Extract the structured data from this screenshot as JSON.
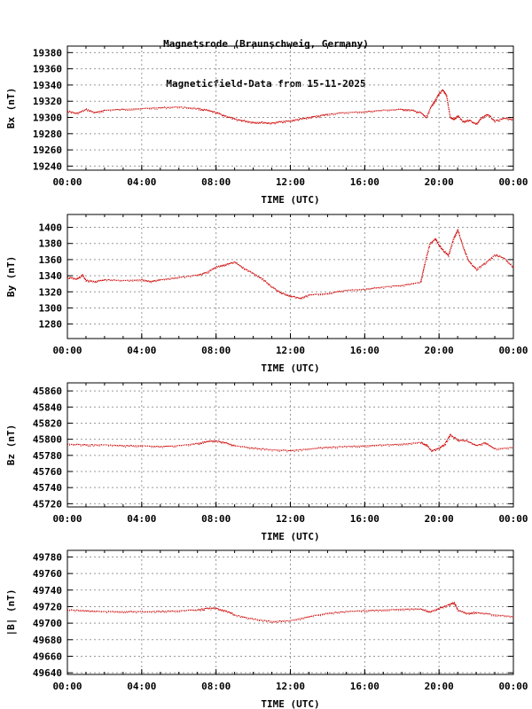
{
  "title_line1": "Magnetsrode (Braunschweig, Germany)",
  "title_line2": "Magneticfield-Data from 15-11-2025",
  "trace_color": "#cc0000",
  "grid_color": "#999999",
  "chart_data": [
    {
      "type": "line",
      "ylabel": "Bx (nT)",
      "xlabel": "TIME (UTC)",
      "xlim": [
        0,
        24
      ],
      "x_ticks": [
        "00:00",
        "04:00",
        "08:00",
        "12:00",
        "16:00",
        "20:00",
        "00:00"
      ],
      "ylim": [
        19235,
        19388
      ],
      "y_ticks": [
        19240,
        19260,
        19280,
        19300,
        19320,
        19340,
        19360,
        19380
      ],
      "grid": true,
      "series": [
        {
          "x": [
            0,
            0.5,
            1,
            1.5,
            2,
            3,
            4,
            5,
            6,
            7,
            7.5,
            8,
            8.5,
            9,
            9.5,
            10,
            10.5,
            11,
            11.5,
            12,
            12.5,
            13,
            13.5,
            14,
            15,
            16,
            17,
            18,
            18.5,
            19,
            19.3,
            19.6,
            19.8,
            20,
            20.2,
            20.4,
            20.6,
            20.8,
            21,
            21.3,
            21.6,
            22,
            22.3,
            22.6,
            23,
            23.5,
            24
          ],
          "y": [
            19308,
            19305,
            19310,
            19306,
            19309,
            19310,
            19311,
            19312,
            19313,
            19311,
            19309,
            19306,
            19302,
            19298,
            19296,
            19294,
            19294,
            19293,
            19295,
            19296,
            19298,
            19300,
            19302,
            19304,
            19306,
            19307,
            19309,
            19310,
            19309,
            19306,
            19300,
            19315,
            19322,
            19330,
            19334,
            19326,
            19300,
            19298,
            19302,
            19295,
            19297,
            19292,
            19300,
            19304,
            19296,
            19299,
            19298
          ]
        }
      ]
    },
    {
      "type": "line",
      "ylabel": "By (nT)",
      "xlabel": "TIME (UTC)",
      "xlim": [
        0,
        24
      ],
      "x_ticks": [
        "00:00",
        "04:00",
        "08:00",
        "12:00",
        "16:00",
        "20:00",
        "00:00"
      ],
      "ylim": [
        1262,
        1416
      ],
      "y_ticks": [
        1280,
        1300,
        1320,
        1340,
        1360,
        1380,
        1400
      ],
      "grid": true,
      "series": [
        {
          "x": [
            0,
            0.5,
            0.8,
            1,
            1.5,
            2,
            3,
            4,
            4.5,
            5,
            6,
            7,
            7.5,
            8,
            8.5,
            9,
            9.5,
            10,
            10.5,
            11,
            11.5,
            12,
            12.5,
            13,
            14,
            15,
            16,
            17,
            18,
            19,
            19.2,
            19.5,
            19.8,
            20,
            20.2,
            20.5,
            20.8,
            21,
            21.3,
            21.6,
            22,
            22.5,
            23,
            23.5,
            24
          ],
          "y": [
            1338,
            1336,
            1341,
            1334,
            1333,
            1335,
            1334,
            1335,
            1333,
            1335,
            1338,
            1341,
            1344,
            1351,
            1354,
            1357,
            1349,
            1343,
            1336,
            1326,
            1319,
            1315,
            1312,
            1316,
            1318,
            1322,
            1323,
            1326,
            1328,
            1332,
            1352,
            1380,
            1386,
            1378,
            1372,
            1365,
            1388,
            1397,
            1375,
            1358,
            1348,
            1356,
            1366,
            1362,
            1350
          ]
        }
      ]
    },
    {
      "type": "line",
      "ylabel": "Bz (nT)",
      "xlabel": "TIME (UTC)",
      "xlim": [
        0,
        24
      ],
      "x_ticks": [
        "00:00",
        "04:00",
        "08:00",
        "12:00",
        "16:00",
        "20:00",
        "00:00"
      ],
      "ylim": [
        45716,
        45870
      ],
      "y_ticks": [
        45720,
        45740,
        45760,
        45780,
        45800,
        45820,
        45840,
        45860
      ],
      "grid": true,
      "series": [
        {
          "x": [
            0,
            1,
            2,
            3,
            4,
            5,
            6,
            7,
            7.5,
            8,
            8.5,
            9,
            10,
            11,
            12,
            13,
            14,
            15,
            16,
            17,
            18,
            19,
            19.3,
            19.6,
            20,
            20.3,
            20.6,
            21,
            21.5,
            22,
            22.5,
            23,
            24
          ],
          "y": [
            45794,
            45793,
            45793,
            45792,
            45792,
            45791,
            45792,
            45795,
            45797,
            45798,
            45796,
            45792,
            45789,
            45787,
            45786,
            45788,
            45790,
            45791,
            45792,
            45793,
            45794,
            45796,
            45793,
            45786,
            45789,
            45794,
            45806,
            45799,
            45798,
            45792,
            45796,
            45788,
            45790
          ]
        }
      ]
    },
    {
      "type": "line",
      "ylabel": "|B| (nT)",
      "xlabel": "TIME (UTC)",
      "xlim": [
        0,
        24
      ],
      "x_ticks": [
        "00:00",
        "04:00",
        "08:00",
        "12:00",
        "16:00",
        "20:00",
        "00:00"
      ],
      "ylim": [
        49638,
        49788
      ],
      "y_ticks": [
        49640,
        49660,
        49680,
        49700,
        49720,
        49740,
        49760,
        49780
      ],
      "grid": true,
      "series": [
        {
          "x": [
            0,
            1,
            2,
            3,
            4,
            5,
            6,
            7,
            7.5,
            8,
            8.5,
            9,
            10,
            11,
            12,
            13,
            14,
            15,
            16,
            17,
            18,
            19,
            19.5,
            20,
            20.5,
            20.8,
            21,
            21.5,
            22,
            23,
            24
          ],
          "y": [
            49716,
            49715,
            49714,
            49714,
            49714,
            49714,
            49715,
            49716,
            49718,
            49718,
            49715,
            49710,
            49705,
            49702,
            49703,
            49708,
            49712,
            49714,
            49715,
            49716,
            49717,
            49717,
            49714,
            49718,
            49722,
            49725,
            49716,
            49712,
            49713,
            49710,
            49708
          ]
        }
      ]
    }
  ]
}
